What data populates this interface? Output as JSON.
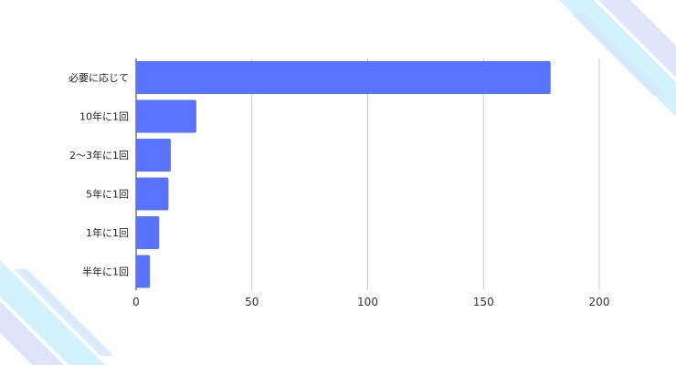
{
  "chart_data": {
    "type": "bar",
    "orientation": "horizontal",
    "categories": [
      "必要に応じて",
      "10年に1回",
      "2〜3年に1回",
      "5年に1回",
      "1年に1回",
      "半年に1回"
    ],
    "values": [
      179,
      26,
      15,
      14,
      10,
      6
    ],
    "xlim": [
      0,
      200
    ],
    "xticks": [
      "0",
      "50",
      "100",
      "150",
      "200"
    ],
    "title": "",
    "xlabel": "",
    "ylabel": "",
    "grid": "vertical",
    "bar_color": "#5773ff"
  },
  "decoration": {
    "stripe_colors": [
      "#cdeffa",
      "#dde1fb",
      "#d6e9fa"
    ]
  }
}
